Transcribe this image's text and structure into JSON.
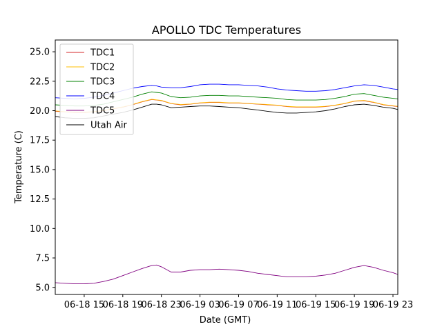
{
  "chart_data": {
    "type": "line",
    "title": "APOLLO TDC Temperatures",
    "xlabel": "Date (GMT)",
    "ylabel": "Temperature (C)",
    "xlim": [
      12,
      47.5
    ],
    "ylim": [
      4.4,
      26.0
    ],
    "xunit": "hours since 06-18 00:00 GMT",
    "xticks": [
      {
        "value": 15,
        "label": "06-18 15"
      },
      {
        "value": 19,
        "label": "06-18 19"
      },
      {
        "value": 23,
        "label": "06-18 23"
      },
      {
        "value": 27,
        "label": "06-19 03"
      },
      {
        "value": 31,
        "label": "06-19 07"
      },
      {
        "value": 35,
        "label": "06-19 11"
      },
      {
        "value": 39,
        "label": "06-19 15"
      },
      {
        "value": 43,
        "label": "06-19 19"
      },
      {
        "value": 47,
        "label": "06-19 23"
      }
    ],
    "yticks": [
      {
        "value": 5.0,
        "label": "5.0"
      },
      {
        "value": 7.5,
        "label": "7.5"
      },
      {
        "value": 10.0,
        "label": "10.0"
      },
      {
        "value": 12.5,
        "label": "12.5"
      },
      {
        "value": 15.0,
        "label": "15.0"
      },
      {
        "value": 17.5,
        "label": "17.5"
      },
      {
        "value": 20.0,
        "label": "20.0"
      },
      {
        "value": 22.5,
        "label": "22.5"
      },
      {
        "value": 25.0,
        "label": "25.0"
      }
    ],
    "legend_position": "top-left",
    "series": [
      {
        "name": "TDC1",
        "color": "#d62728",
        "x": [
          12,
          13,
          14,
          15,
          16,
          17,
          18,
          19,
          20,
          21,
          22,
          22.5,
          23,
          24,
          25,
          26,
          27,
          28,
          29,
          30,
          31,
          32,
          33,
          34,
          35,
          36,
          37,
          38,
          39,
          40,
          41,
          42,
          43,
          44,
          45,
          46,
          47,
          47.5
        ],
        "values": [
          19.95,
          19.9,
          19.85,
          19.85,
          19.9,
          20.0,
          20.15,
          20.3,
          20.5,
          20.75,
          20.95,
          20.9,
          20.85,
          20.6,
          20.5,
          20.55,
          20.65,
          20.7,
          20.7,
          20.65,
          20.65,
          20.6,
          20.55,
          20.5,
          20.45,
          20.35,
          20.3,
          20.3,
          20.3,
          20.35,
          20.45,
          20.6,
          20.8,
          20.85,
          20.7,
          20.5,
          20.4,
          20.35
        ]
      },
      {
        "name": "TDC2",
        "color": "#ffbf00",
        "x": [
          12,
          13,
          14,
          15,
          16,
          17,
          18,
          19,
          20,
          21,
          22,
          22.5,
          23,
          24,
          25,
          26,
          27,
          28,
          29,
          30,
          31,
          32,
          33,
          34,
          35,
          36,
          37,
          38,
          39,
          40,
          41,
          42,
          43,
          44,
          45,
          46,
          47,
          47.5
        ],
        "values": [
          19.98,
          19.92,
          19.88,
          19.88,
          19.92,
          20.02,
          20.17,
          20.32,
          20.52,
          20.77,
          20.97,
          20.92,
          20.87,
          20.62,
          20.52,
          20.57,
          20.67,
          20.72,
          20.72,
          20.67,
          20.67,
          20.62,
          20.57,
          20.52,
          20.47,
          20.37,
          20.32,
          20.32,
          20.32,
          20.37,
          20.47,
          20.62,
          20.82,
          20.87,
          20.72,
          20.52,
          20.42,
          20.37
        ]
      },
      {
        "name": "TDC3",
        "color": "#008000",
        "x": [
          12,
          13,
          14,
          15,
          16,
          17,
          18,
          19,
          20,
          21,
          22,
          22.5,
          23,
          24,
          25,
          26,
          27,
          28,
          29,
          30,
          31,
          32,
          33,
          34,
          35,
          36,
          37,
          38,
          39,
          40,
          41,
          42,
          43,
          44,
          45,
          46,
          47,
          47.5
        ],
        "values": [
          20.5,
          20.45,
          20.4,
          20.4,
          20.45,
          20.55,
          20.75,
          20.95,
          21.15,
          21.4,
          21.6,
          21.55,
          21.5,
          21.2,
          21.1,
          21.15,
          21.25,
          21.3,
          21.3,
          21.25,
          21.25,
          21.2,
          21.15,
          21.1,
          21.05,
          20.95,
          20.9,
          20.9,
          20.9,
          20.95,
          21.05,
          21.2,
          21.4,
          21.45,
          21.3,
          21.15,
          21.05,
          21.0
        ]
      },
      {
        "name": "TDC4",
        "color": "#0000ff",
        "x": [
          12,
          13,
          14,
          15,
          16,
          17,
          18,
          19,
          20,
          21,
          22,
          22.5,
          23,
          24,
          25,
          26,
          27,
          28,
          29,
          30,
          31,
          32,
          33,
          34,
          35,
          36,
          37,
          38,
          39,
          40,
          41,
          42,
          43,
          44,
          45,
          46,
          47,
          47.5
        ],
        "values": [
          21.1,
          21.05,
          21.0,
          21.05,
          21.15,
          21.3,
          21.5,
          21.7,
          21.9,
          22.05,
          22.15,
          22.1,
          22.0,
          21.95,
          21.95,
          22.05,
          22.2,
          22.25,
          22.25,
          22.2,
          22.2,
          22.15,
          22.1,
          22.0,
          21.85,
          21.75,
          21.7,
          21.65,
          21.65,
          21.7,
          21.8,
          21.95,
          22.1,
          22.2,
          22.15,
          22.0,
          21.85,
          21.8
        ]
      },
      {
        "name": "TDC5",
        "color": "#800080",
        "x": [
          12,
          13,
          14,
          15,
          16,
          17,
          18,
          19,
          20,
          21,
          22,
          22.5,
          23,
          24,
          25,
          26,
          27,
          28,
          29,
          30,
          31,
          32,
          33,
          34,
          35,
          36,
          37,
          38,
          39,
          40,
          41,
          42,
          43,
          44,
          45,
          46,
          47,
          47.5
        ],
        "values": [
          5.4,
          5.35,
          5.3,
          5.3,
          5.35,
          5.5,
          5.7,
          6.0,
          6.3,
          6.6,
          6.85,
          6.9,
          6.75,
          6.3,
          6.3,
          6.45,
          6.5,
          6.5,
          6.55,
          6.5,
          6.45,
          6.35,
          6.2,
          6.1,
          6.0,
          5.9,
          5.9,
          5.9,
          5.95,
          6.05,
          6.2,
          6.45,
          6.7,
          6.85,
          6.7,
          6.45,
          6.25,
          6.1
        ]
      },
      {
        "name": "Utah Air",
        "color": "#000000",
        "x": [
          12,
          13,
          14,
          15,
          16,
          17,
          18,
          19,
          20,
          21,
          22,
          22.5,
          23,
          24,
          25,
          26,
          27,
          28,
          29,
          30,
          31,
          32,
          33,
          34,
          35,
          36,
          37,
          38,
          39,
          40,
          41,
          42,
          43,
          44,
          45,
          46,
          47,
          47.5
        ],
        "values": [
          19.5,
          19.4,
          19.35,
          19.35,
          19.4,
          19.55,
          19.7,
          19.85,
          20.05,
          20.3,
          20.55,
          20.55,
          20.5,
          20.25,
          20.3,
          20.35,
          20.4,
          20.4,
          20.35,
          20.3,
          20.25,
          20.15,
          20.05,
          19.95,
          19.85,
          19.8,
          19.8,
          19.85,
          19.9,
          20.0,
          20.15,
          20.35,
          20.5,
          20.55,
          20.45,
          20.3,
          20.2,
          20.1
        ]
      }
    ]
  }
}
